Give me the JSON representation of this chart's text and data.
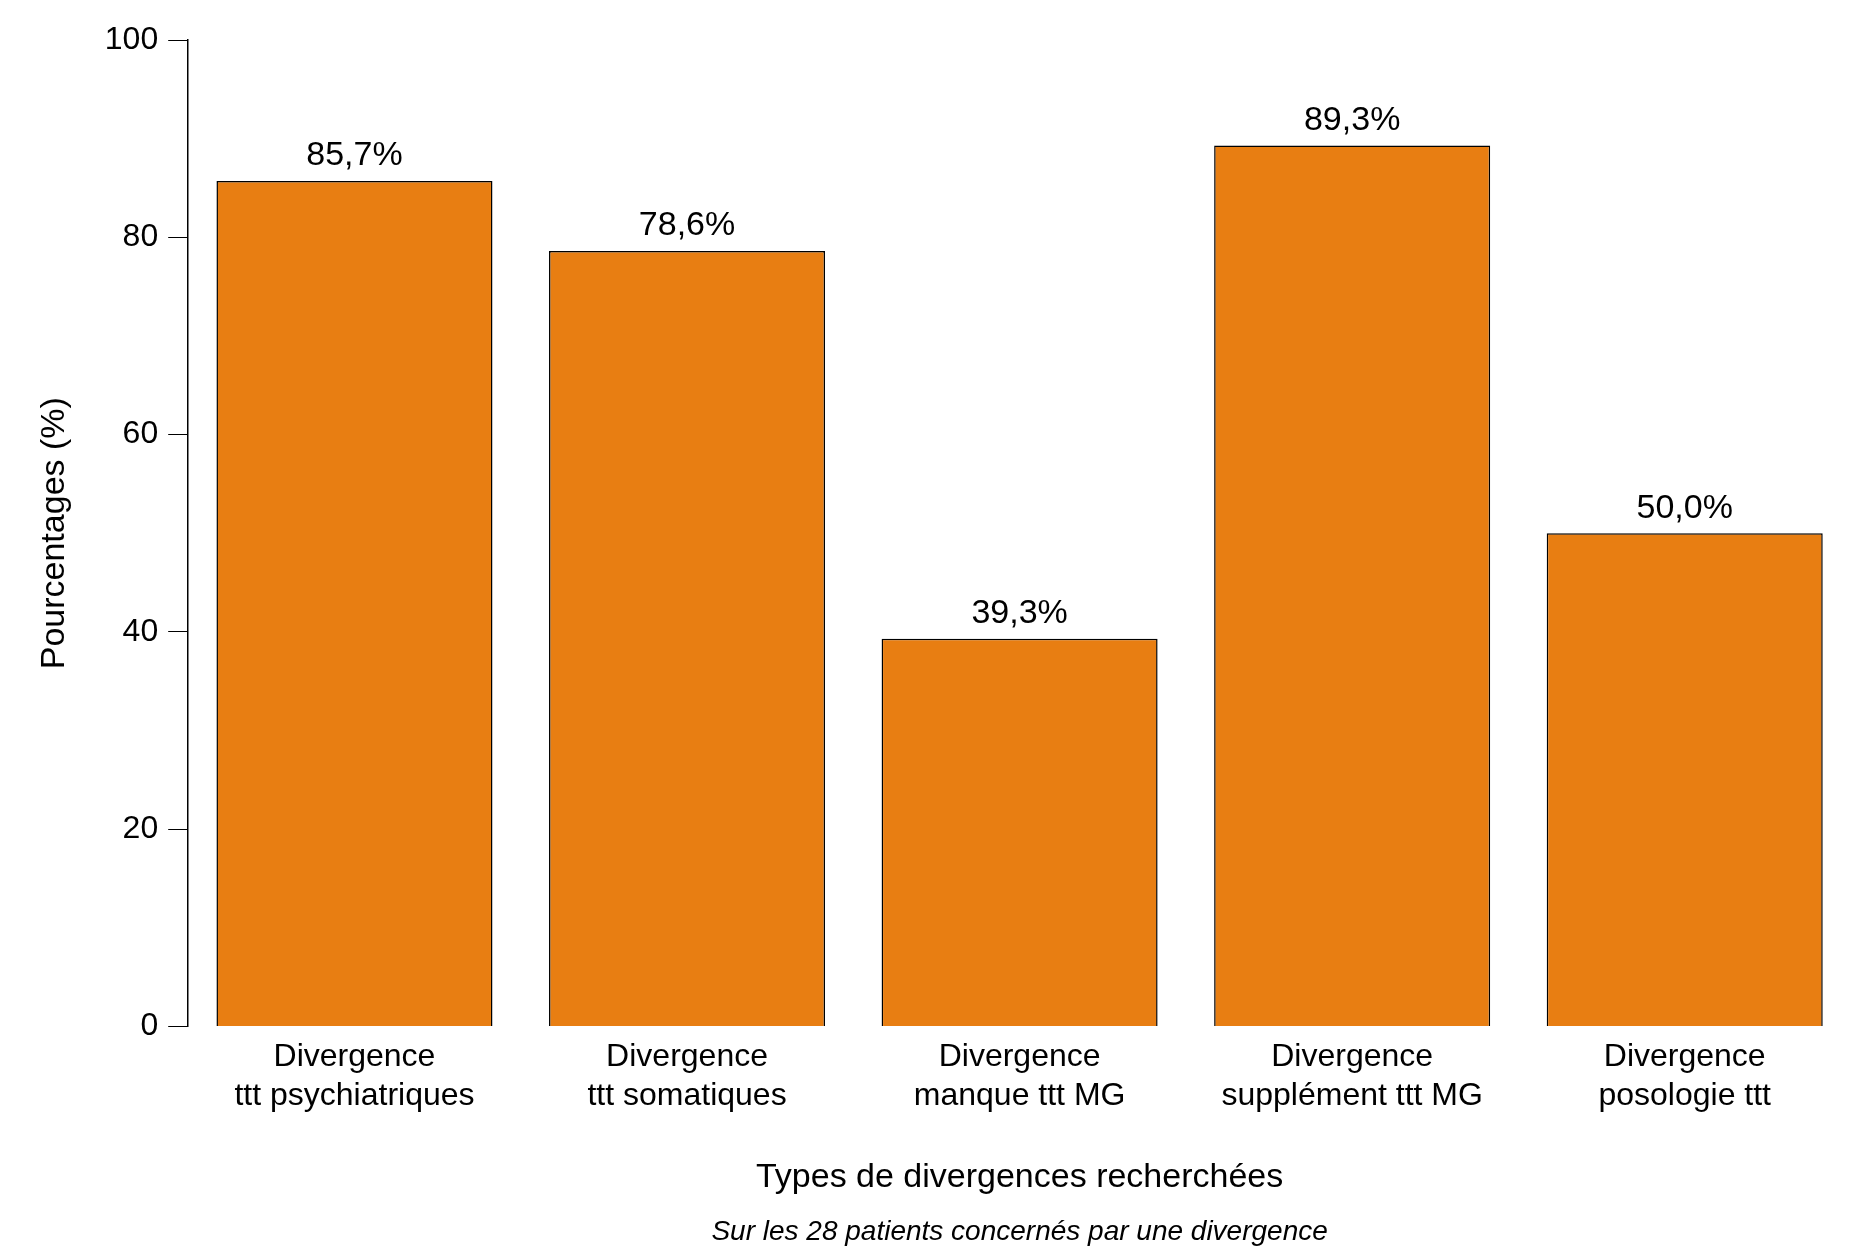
{
  "chart_data": {
    "type": "bar",
    "xlabel": "Types de divergences recherchées",
    "ylabel": "Pourcentages (%)",
    "categories": [
      "Divergence ttt psychiatriques",
      "Divergence ttt somatiques",
      "Divergence manque ttt MG",
      "Divergence supplément ttt MG",
      "Divergence posologie ttt"
    ],
    "values": [
      85.7,
      78.6,
      39.3,
      89.3,
      50.0
    ],
    "value_labels": [
      "85,7%",
      "78,6%",
      "39,3%",
      "89,3%",
      "50,0%"
    ],
    "color": "#e87e12",
    "ylim": [
      0,
      100
    ],
    "yticks": [
      0,
      20,
      40,
      60,
      80,
      100
    ],
    "grid": false,
    "legend": false,
    "annotations": [
      "Sur les 28 patients concernés par une divergence"
    ]
  }
}
